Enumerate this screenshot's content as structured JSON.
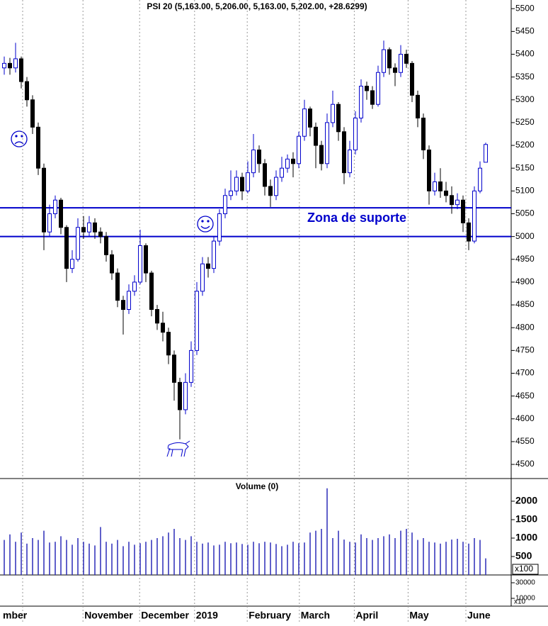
{
  "chart_data": [
    {
      "type": "candlestick",
      "title": "PSI 20 (5,163.00, 5,206.00, 5,163.00, 5,202.00, +28.6299)",
      "xlim": [
        -0.5,
        89.5
      ],
      "xticks": [
        {
          "value": -0.5,
          "label": "mber"
        },
        {
          "value": 3.25,
          "label": null
        },
        {
          "value": 13.9,
          "label": "November"
        },
        {
          "value": 23.9,
          "label": "December"
        },
        {
          "value": 33.6,
          "label": "2019"
        },
        {
          "value": 42.9,
          "label": "February"
        },
        {
          "value": 52.1,
          "label": "March"
        },
        {
          "value": 61.8,
          "label": "April"
        },
        {
          "value": 71.3,
          "label": "May"
        },
        {
          "value": 81.5,
          "label": "June"
        }
      ],
      "ylim": [
        4469,
        5519
      ],
      "yticks": [
        4500,
        4550,
        4600,
        4650,
        4700,
        4750,
        4800,
        4850,
        4900,
        4950,
        5000,
        5050,
        5100,
        5150,
        5200,
        5250,
        5300,
        5350,
        5400,
        5450,
        5500
      ],
      "up_color": "#0000cc",
      "down_color": "#000000",
      "open": [
        5370,
        5380,
        5370,
        5390,
        5340,
        5300,
        5240,
        5150,
        5010,
        5050,
        5080,
        5020,
        4930,
        4950,
        5020,
        5010,
        5030,
        5010,
        5000,
        4960,
        4920,
        4860,
        4840,
        4880,
        4900,
        4980,
        4920,
        4840,
        4810,
        4790,
        4740,
        4680,
        4620,
        4680,
        4750,
        4880,
        4940,
        4930,
        4990,
        5050,
        5090,
        5100,
        5130,
        5100,
        5140,
        5190,
        5160,
        5110,
        5090,
        5130,
        5150,
        5170,
        5160,
        5220,
        5280,
        5240,
        5200,
        5160,
        5250,
        5290,
        5230,
        5140,
        5190,
        5260,
        5330,
        5320,
        5290,
        5360,
        5410,
        5370,
        5360,
        5400,
        5380,
        5310,
        5260,
        5190,
        5100,
        5120,
        5100,
        5090,
        5070,
        5080,
        5030,
        4990,
        5100,
        5163
      ],
      "high": [
        5395,
        5392,
        5425,
        5395,
        5350,
        5310,
        5250,
        5160,
        5070,
        5090,
        5085,
        5025,
        4970,
        5040,
        5045,
        5045,
        5040,
        5020,
        5010,
        4970,
        4930,
        4870,
        4895,
        4915,
        5015,
        4985,
        4925,
        4850,
        4835,
        4800,
        4750,
        4690,
        4700,
        4770,
        4900,
        4955,
        4955,
        5000,
        5060,
        5105,
        5145,
        5145,
        5140,
        5165,
        5225,
        5200,
        5170,
        5125,
        5145,
        5175,
        5180,
        5185,
        5230,
        5300,
        5285,
        5250,
        5210,
        5270,
        5320,
        5295,
        5240,
        5210,
        5275,
        5345,
        5340,
        5330,
        5375,
        5430,
        5415,
        5380,
        5420,
        5410,
        5385,
        5320,
        5270,
        5200,
        5140,
        5150,
        5120,
        5110,
        5095,
        5090,
        5040,
        5110,
        5165,
        5206
      ],
      "low": [
        5355,
        5355,
        5360,
        5325,
        5285,
        5225,
        5135,
        4970,
        5000,
        5040,
        5005,
        4900,
        4920,
        4945,
        4995,
        5000,
        4995,
        4985,
        4945,
        4905,
        4845,
        4785,
        4830,
        4870,
        4895,
        4900,
        4825,
        4795,
        4770,
        4720,
        4640,
        4555,
        4610,
        4670,
        4740,
        4870,
        4910,
        4920,
        4980,
        5040,
        5080,
        5090,
        5080,
        5095,
        5130,
        5140,
        5090,
        5065,
        5080,
        5120,
        5140,
        5130,
        5150,
        5210,
        5220,
        5150,
        5145,
        5150,
        5240,
        5210,
        5115,
        5130,
        5180,
        5250,
        5300,
        5280,
        5285,
        5350,
        5355,
        5330,
        5350,
        5370,
        5295,
        5240,
        5170,
        5070,
        5090,
        5085,
        5075,
        5050,
        5060,
        5010,
        4970,
        4985,
        5095,
        5163
      ],
      "close": [
        5380,
        5370,
        5390,
        5340,
        5300,
        5240,
        5150,
        5010,
        5050,
        5080,
        5020,
        4930,
        4950,
        5020,
        5010,
        5030,
        5010,
        5000,
        4960,
        4920,
        4860,
        4840,
        4880,
        4900,
        4980,
        4920,
        4840,
        4810,
        4790,
        4740,
        4680,
        4620,
        4680,
        4750,
        4880,
        4940,
        4930,
        4990,
        5050,
        5090,
        5100,
        5130,
        5100,
        5140,
        5190,
        5160,
        5110,
        5090,
        5130,
        5150,
        5170,
        5160,
        5220,
        5280,
        5240,
        5200,
        5160,
        5250,
        5290,
        5230,
        5140,
        5190,
        5260,
        5330,
        5320,
        5290,
        5360,
        5410,
        5370,
        5360,
        5400,
        5380,
        5310,
        5260,
        5190,
        5100,
        5120,
        5100,
        5090,
        5070,
        5080,
        5030,
        4990,
        5100,
        5150,
        5202
      ],
      "reference_lines": [
        5063,
        5000
      ],
      "reference_color": "#0000cc",
      "annotation": "Zona de suporte"
    },
    {
      "type": "bar",
      "title": "Volume (0)",
      "unit_label": "x100",
      "color": "#2a2ab8",
      "ylim": [
        0,
        2615
      ],
      "yticks": [
        500,
        1000,
        1500,
        2000
      ],
      "values": [
        950,
        1100,
        900,
        1150,
        850,
        1000,
        950,
        1200,
        880,
        900,
        1050,
        950,
        820,
        1000,
        900,
        850,
        800,
        1300,
        900,
        850,
        950,
        780,
        900,
        820,
        860,
        900,
        950,
        1000,
        1050,
        1150,
        1250,
        1000,
        950,
        1050,
        900,
        850,
        880,
        800,
        820,
        900,
        860,
        880,
        840,
        820,
        900,
        860,
        900,
        880,
        840,
        780,
        820,
        900,
        860,
        880,
        1150,
        1200,
        1250,
        2350,
        1000,
        1200,
        960,
        900,
        880,
        1100,
        1000,
        950,
        1000,
        1050,
        1100,
        1000,
        1200,
        1250,
        1150,
        950,
        1000,
        900,
        880,
        850,
        900,
        960,
        980,
        900,
        850,
        1000,
        950,
        450
      ]
    },
    {
      "type": "axis",
      "unit_label": "x10",
      "ylim": [
        0,
        40000
      ],
      "yticks": [
        10000,
        30000
      ]
    }
  ]
}
